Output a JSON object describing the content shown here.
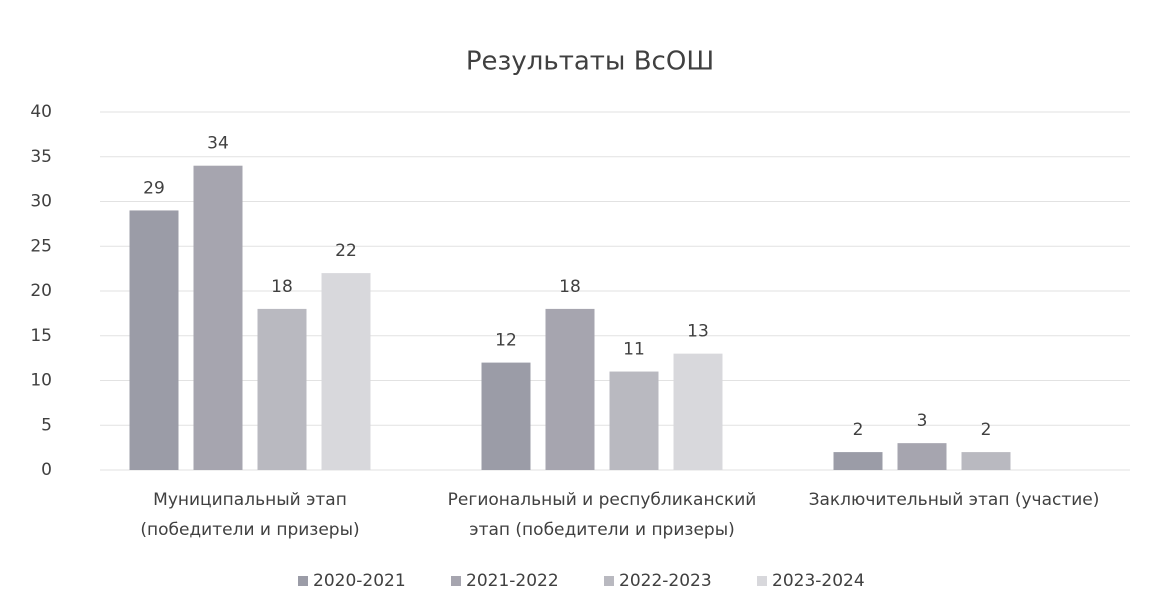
{
  "chart_data": {
    "type": "bar",
    "title": "Результаты ВсОШ",
    "categories": [
      [
        "Муниципальный этап",
        "(победители и призеры)"
      ],
      [
        "Региональный и республиканский",
        "этап (победители и призеры)"
      ],
      [
        "Заключительный этап (участие)"
      ]
    ],
    "series": [
      {
        "name": "2020-2021",
        "color": "#9b9ca7",
        "values": [
          29,
          12,
          2
        ]
      },
      {
        "name": "2021-2022",
        "color": "#a6a5af",
        "values": [
          34,
          18,
          3
        ]
      },
      {
        "name": "2022-2023",
        "color": "#b9b9c0",
        "values": [
          18,
          11,
          2
        ]
      },
      {
        "name": "2023-2024",
        "color": "#d8d8dc",
        "values": [
          22,
          13,
          null
        ]
      }
    ],
    "ylim": [
      0,
      40
    ],
    "yticks": [
      0,
      5,
      10,
      15,
      20,
      25,
      30,
      35,
      40
    ],
    "grid": true,
    "legend": "bottom"
  }
}
